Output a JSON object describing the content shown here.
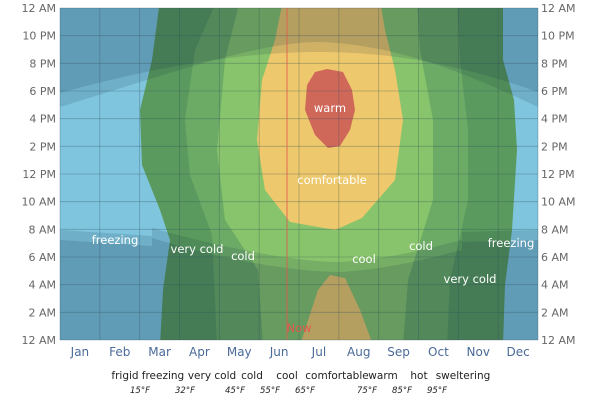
{
  "chart_data": {
    "type": "heatmap",
    "x_categories": [
      "Jan",
      "Feb",
      "Mar",
      "Apr",
      "May",
      "Jun",
      "Jul",
      "Aug",
      "Sep",
      "Oct",
      "Nov",
      "Dec"
    ],
    "y_ticks": [
      "12 AM",
      "2 AM",
      "4 AM",
      "6 AM",
      "8 AM",
      "10 AM",
      "12 PM",
      "2 PM",
      "4 PM",
      "6 PM",
      "8 PM",
      "10 PM",
      "12 AM"
    ],
    "grid": true,
    "legend_placement": "bottom",
    "legend": {
      "categories": [
        "frigid",
        "freezing",
        "very cold",
        "cold",
        "cool",
        "comfortable",
        "warm",
        "hot",
        "sweltering"
      ],
      "thresholds": [
        "15°F",
        "32°F",
        "45°F",
        "55°F",
        "65°F",
        "75°F",
        "85°F",
        "95°F"
      ]
    },
    "colors": {
      "freezing": "#7fc5dd",
      "very_cold": "#5a9a5e",
      "cold": "#6cab66",
      "cool": "#88c46b",
      "comfortable": "#edc86c",
      "warm": "#d0685a",
      "now_line": "#e2574c"
    },
    "annotations": [
      "freezing",
      "very cold",
      "cold",
      "warm",
      "comfortable",
      "cool",
      "cold",
      "very cold",
      "freezing"
    ],
    "now_marker": {
      "label": "Now",
      "month": "Jun"
    }
  }
}
